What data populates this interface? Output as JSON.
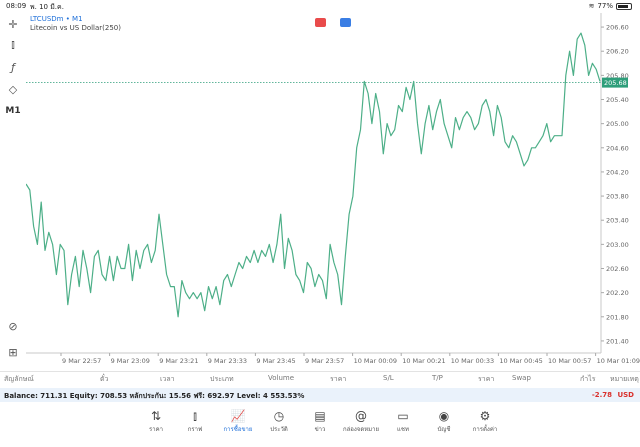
{
  "status": {
    "time": "08:09",
    "date": "พ. 10 มี.ค.",
    "battery": "77%"
  },
  "toolbar": {
    "timeframe": "M1"
  },
  "chart": {
    "symbol": "LTCUSDm • M1",
    "description": "Litecoin vs US Dollar(250)",
    "current_price": "205.68",
    "price_color": "#2e9e7a"
  },
  "chart_data": {
    "type": "line",
    "ylim": [
      201.2,
      206.8
    ],
    "y_ticks": [
      201.4,
      201.8,
      202.2,
      202.6,
      203.0,
      203.4,
      203.8,
      204.2,
      204.6,
      205.0,
      205.4,
      205.8,
      206.2,
      206.6
    ],
    "y_tick_labels": [
      "201.40",
      "201.80",
      "202.20",
      "202.60",
      "203.00",
      "203.40",
      "203.80",
      "204.20",
      "204.60",
      "205.00",
      "205.40",
      "205.80",
      "206.20",
      "206.60"
    ],
    "x_labels": [
      "9 Mar 22:57",
      "9 Mar 23:09",
      "9 Mar 23:21",
      "9 Mar 23:33",
      "9 Mar 23:45",
      "9 Mar 23:57",
      "10 Mar 00:09",
      "10 Mar 00:21",
      "10 Mar 00:33",
      "10 Mar 00:45",
      "10 Mar 00:57",
      "10 Mar 01:09"
    ],
    "bid_line": 205.68,
    "values": [
      204.0,
      203.9,
      203.3,
      203.0,
      203.7,
      202.9,
      203.2,
      203.0,
      202.5,
      203.0,
      202.9,
      202.0,
      202.5,
      202.8,
      202.3,
      202.9,
      202.6,
      202.2,
      202.8,
      202.9,
      202.5,
      202.4,
      202.8,
      202.4,
      202.8,
      202.6,
      202.6,
      203.0,
      202.4,
      202.9,
      202.6,
      202.9,
      203.0,
      202.7,
      202.9,
      203.5,
      203.0,
      202.5,
      202.3,
      202.3,
      201.8,
      202.4,
      202.2,
      202.1,
      202.2,
      202.1,
      202.2,
      201.9,
      202.3,
      202.1,
      202.3,
      202.0,
      202.4,
      202.5,
      202.3,
      202.5,
      202.7,
      202.6,
      202.8,
      202.7,
      202.9,
      202.7,
      202.9,
      202.8,
      203.0,
      202.7,
      203.0,
      203.5,
      202.6,
      203.1,
      202.9,
      202.5,
      202.4,
      202.2,
      202.7,
      202.6,
      202.3,
      202.5,
      202.4,
      202.1,
      203.0,
      202.7,
      202.5,
      202.0,
      202.8,
      203.5,
      203.8,
      204.6,
      204.9,
      205.7,
      205.5,
      205.0,
      205.5,
      205.2,
      204.5,
      205.0,
      204.8,
      204.9,
      205.3,
      205.2,
      205.6,
      205.4,
      205.7,
      205.0,
      204.5,
      205.0,
      205.3,
      204.9,
      205.2,
      205.4,
      205.0,
      204.8,
      204.6,
      205.1,
      204.9,
      205.1,
      205.2,
      205.1,
      204.9,
      205.0,
      205.3,
      205.4,
      205.2,
      204.8,
      205.3,
      205.1,
      204.7,
      204.6,
      204.8,
      204.7,
      204.5,
      204.3,
      204.4,
      204.6,
      204.6,
      204.7,
      204.8,
      205.0,
      204.7,
      204.8,
      204.8,
      204.8,
      205.8,
      206.2,
      205.8,
      206.4,
      206.5,
      206.3,
      205.8,
      206.0,
      205.9,
      205.7
    ]
  },
  "columns": [
    "สัญลักษณ์",
    "ตั๋ว",
    "เวลา",
    "ประเภท",
    "Volume",
    "ราคา",
    "S/L",
    "T/P",
    "ราคา",
    "Swap",
    "กำไร",
    "หมายเหตุ"
  ],
  "balance": {
    "text": "Balance: 711.31  Equity: 708.53  หลักประกัน: 15.56  ฟรี: 692.97  Level: 4 553.53%",
    "pl": "-2.78",
    "currency": "USD"
  },
  "nav": [
    {
      "label": "ราคา",
      "icon": "quotes-icon"
    },
    {
      "label": "กราฟ",
      "icon": "chart-icon"
    },
    {
      "label": "การซื้อขาย",
      "icon": "trade-icon"
    },
    {
      "label": "ประวัติ",
      "icon": "history-icon"
    },
    {
      "label": "ข่าว",
      "icon": "news-icon"
    },
    {
      "label": "กล่องจดหมาย",
      "icon": "mailbox-icon"
    },
    {
      "label": "แชท",
      "icon": "chat-icon"
    },
    {
      "label": "บัญชี",
      "icon": "account-icon"
    },
    {
      "label": "การตั้งค่า",
      "icon": "settings-icon"
    }
  ]
}
